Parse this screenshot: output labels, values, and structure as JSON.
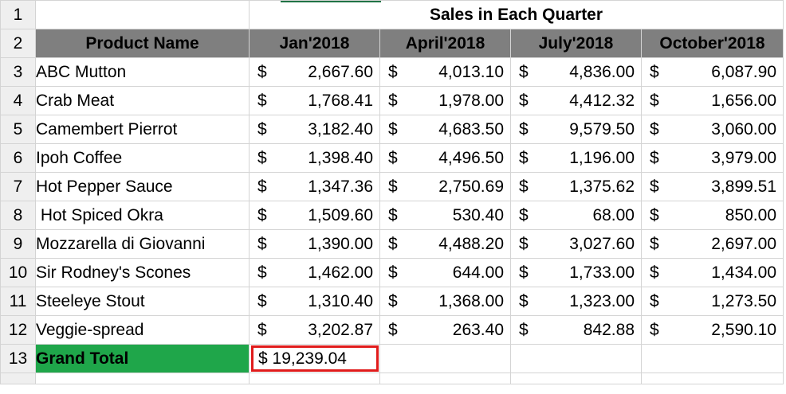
{
  "row_numbers": [
    "1",
    "2",
    "3",
    "4",
    "5",
    "6",
    "7",
    "8",
    "9",
    "10",
    "11",
    "12",
    "13"
  ],
  "title": "Sales in Each Quarter",
  "headers": [
    "Product Name",
    "Jan'2018",
    "April'2018",
    "July'2018",
    "October'2018"
  ],
  "currency_symbol": "$",
  "rows": [
    {
      "product": "ABC Mutton",
      "q": [
        "2,667.60",
        "4,013.10",
        "4,836.00",
        "6,087.90"
      ]
    },
    {
      "product": "Crab Meat",
      "q": [
        "1,768.41",
        "1,978.00",
        "4,412.32",
        "1,656.00"
      ]
    },
    {
      "product": "Camembert Pierrot",
      "q": [
        "3,182.40",
        "4,683.50",
        "9,579.50",
        "3,060.00"
      ]
    },
    {
      "product": "Ipoh Coffee",
      "q": [
        "1,398.40",
        "4,496.50",
        "1,196.00",
        "3,979.00"
      ]
    },
    {
      "product": "Hot Pepper Sauce",
      "q": [
        "1,347.36",
        "2,750.69",
        "1,375.62",
        "3,899.51"
      ]
    },
    {
      "product": " Hot Spiced Okra",
      "q": [
        "1,509.60",
        "530.40",
        "68.00",
        "850.00"
      ]
    },
    {
      "product": "Mozzarella di Giovanni",
      "q": [
        "1,390.00",
        "4,488.20",
        "3,027.60",
        "2,697.00"
      ]
    },
    {
      "product": "Sir Rodney's Scones",
      "q": [
        "1,462.00",
        "644.00",
        "1,733.00",
        "1,434.00"
      ]
    },
    {
      "product": "Steeleye Stout",
      "q": [
        "1,310.40",
        "1,368.00",
        "1,323.00",
        "1,273.50"
      ]
    },
    {
      "product": "Veggie-spread",
      "q": [
        "3,202.87",
        "263.40",
        "842.88",
        "2,590.10"
      ]
    }
  ],
  "grand_total": {
    "label": "Grand Total",
    "value": "$ 19,239.04"
  }
}
